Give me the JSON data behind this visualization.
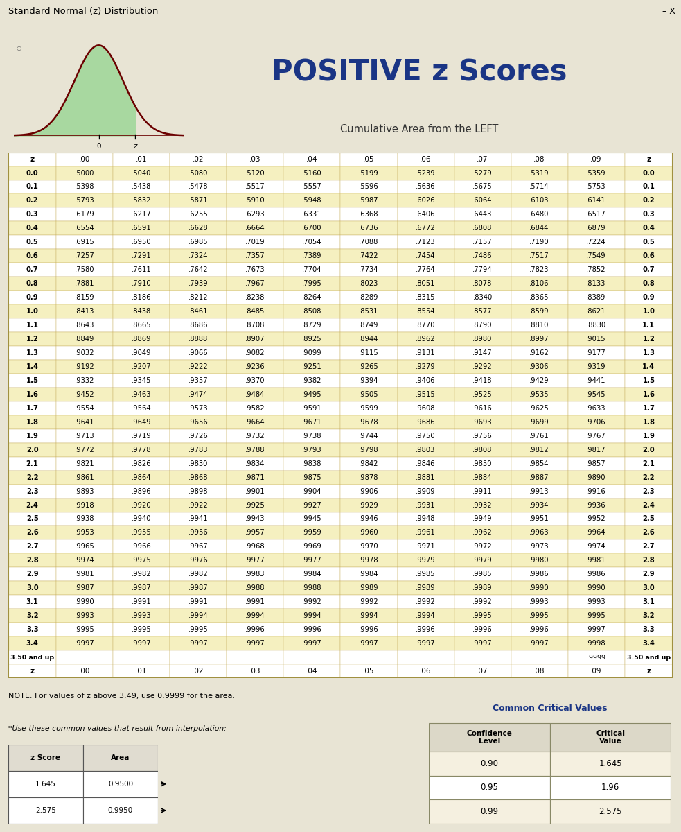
{
  "title": "Standard Normal (z) Distribution",
  "main_title": "POSITIVE z Scores",
  "subtitle": "Cumulative Area from the LEFT",
  "bg_color": "#e8e4d4",
  "main_bg": "#f0ece0",
  "row_even_color": "#f5f0c0",
  "row_odd_color": "#ffffff",
  "header_bg_color": "#ffffff",
  "border_color": "#c8b060",
  "col_headers": [
    "z",
    ".00",
    ".01",
    ".02",
    ".03",
    ".04",
    ".05",
    ".06",
    ".07",
    ".08",
    ".09",
    "z"
  ],
  "rows": [
    [
      "0.0",
      ".5000",
      ".5040",
      ".5080",
      ".5120",
      ".5160",
      ".5199",
      ".5239",
      ".5279",
      ".5319",
      ".5359",
      "0.0"
    ],
    [
      "0.1",
      ".5398",
      ".5438",
      ".5478",
      ".5517",
      ".5557",
      ".5596",
      ".5636",
      ".5675",
      ".5714",
      ".5753",
      "0.1"
    ],
    [
      "0.2",
      ".5793",
      ".5832",
      ".5871",
      ".5910",
      ".5948",
      ".5987",
      ".6026",
      ".6064",
      ".6103",
      ".6141",
      "0.2"
    ],
    [
      "0.3",
      ".6179",
      ".6217",
      ".6255",
      ".6293",
      ".6331",
      ".6368",
      ".6406",
      ".6443",
      ".6480",
      ".6517",
      "0.3"
    ],
    [
      "0.4",
      ".6554",
      ".6591",
      ".6628",
      ".6664",
      ".6700",
      ".6736",
      ".6772",
      ".6808",
      ".6844",
      ".6879",
      "0.4"
    ],
    [
      "0.5",
      ".6915",
      ".6950",
      ".6985",
      ".7019",
      ".7054",
      ".7088",
      ".7123",
      ".7157",
      ".7190",
      ".7224",
      "0.5"
    ],
    [
      "0.6",
      ".7257",
      ".7291",
      ".7324",
      ".7357",
      ".7389",
      ".7422",
      ".7454",
      ".7486",
      ".7517",
      ".7549",
      "0.6"
    ],
    [
      "0.7",
      ".7580",
      ".7611",
      ".7642",
      ".7673",
      ".7704",
      ".7734",
      ".7764",
      ".7794",
      ".7823",
      ".7852",
      "0.7"
    ],
    [
      "0.8",
      ".7881",
      ".7910",
      ".7939",
      ".7967",
      ".7995",
      ".8023",
      ".8051",
      ".8078",
      ".8106",
      ".8133",
      "0.8"
    ],
    [
      "0.9",
      ".8159",
      ".8186",
      ".8212",
      ".8238",
      ".8264",
      ".8289",
      ".8315",
      ".8340",
      ".8365",
      ".8389",
      "0.9"
    ],
    [
      "1.0",
      ".8413",
      ".8438",
      ".8461",
      ".8485",
      ".8508",
      ".8531",
      ".8554",
      ".8577",
      ".8599",
      ".8621",
      "1.0"
    ],
    [
      "1.1",
      ".8643",
      ".8665",
      ".8686",
      ".8708",
      ".8729",
      ".8749",
      ".8770",
      ".8790",
      ".8810",
      ".8830",
      "1.1"
    ],
    [
      "1.2",
      ".8849",
      ".8869",
      ".8888",
      ".8907",
      ".8925",
      ".8944",
      ".8962",
      ".8980",
      ".8997",
      ".9015",
      "1.2"
    ],
    [
      "1.3",
      ".9032",
      ".9049",
      ".9066",
      ".9082",
      ".9099",
      ".9115",
      ".9131",
      ".9147",
      ".9162",
      ".9177",
      "1.3"
    ],
    [
      "1.4",
      ".9192",
      ".9207",
      ".9222",
      ".9236",
      ".9251",
      ".9265",
      ".9279",
      ".9292",
      ".9306",
      ".9319",
      "1.4"
    ],
    [
      "1.5",
      ".9332",
      ".9345",
      ".9357",
      ".9370",
      ".9382",
      ".9394",
      ".9406",
      ".9418",
      ".9429",
      ".9441",
      "1.5"
    ],
    [
      "1.6",
      ".9452",
      ".9463",
      ".9474",
      ".9484",
      ".9495",
      ".9505",
      ".9515",
      ".9525",
      ".9535",
      ".9545",
      "1.6"
    ],
    [
      "1.7",
      ".9554",
      ".9564",
      ".9573",
      ".9582",
      ".9591",
      ".9599",
      ".9608",
      ".9616",
      ".9625",
      ".9633",
      "1.7"
    ],
    [
      "1.8",
      ".9641",
      ".9649",
      ".9656",
      ".9664",
      ".9671",
      ".9678",
      ".9686",
      ".9693",
      ".9699",
      ".9706",
      "1.8"
    ],
    [
      "1.9",
      ".9713",
      ".9719",
      ".9726",
      ".9732",
      ".9738",
      ".9744",
      ".9750",
      ".9756",
      ".9761",
      ".9767",
      "1.9"
    ],
    [
      "2.0",
      ".9772",
      ".9778",
      ".9783",
      ".9788",
      ".9793",
      ".9798",
      ".9803",
      ".9808",
      ".9812",
      ".9817",
      "2.0"
    ],
    [
      "2.1",
      ".9821",
      ".9826",
      ".9830",
      ".9834",
      ".9838",
      ".9842",
      ".9846",
      ".9850",
      ".9854",
      ".9857",
      "2.1"
    ],
    [
      "2.2",
      ".9861",
      ".9864",
      ".9868",
      ".9871",
      ".9875",
      ".9878",
      ".9881",
      ".9884",
      ".9887",
      ".9890",
      "2.2"
    ],
    [
      "2.3",
      ".9893",
      ".9896",
      ".9898",
      ".9901",
      ".9904",
      ".9906",
      ".9909",
      ".9911",
      ".9913",
      ".9916",
      "2.3"
    ],
    [
      "2.4",
      ".9918",
      ".9920",
      ".9922",
      ".9925",
      ".9927",
      ".9929",
      ".9931",
      ".9932",
      ".9934",
      ".9936",
      "2.4"
    ],
    [
      "2.5",
      ".9938",
      ".9940",
      ".9941",
      ".9943",
      ".9945",
      ".9946",
      ".9948",
      ".9949",
      ".9951",
      ".9952",
      "2.5"
    ],
    [
      "2.6",
      ".9953",
      ".9955",
      ".9956",
      ".9957",
      ".9959",
      ".9960",
      ".9961",
      ".9962",
      ".9963",
      ".9964",
      "2.6"
    ],
    [
      "2.7",
      ".9965",
      ".9966",
      ".9967",
      ".9968",
      ".9969",
      ".9970",
      ".9971",
      ".9972",
      ".9973",
      ".9974",
      "2.7"
    ],
    [
      "2.8",
      ".9974",
      ".9975",
      ".9976",
      ".9977",
      ".9977",
      ".9978",
      ".9979",
      ".9979",
      ".9980",
      ".9981",
      "2.8"
    ],
    [
      "2.9",
      ".9981",
      ".9982",
      ".9982",
      ".9983",
      ".9984",
      ".9984",
      ".9985",
      ".9985",
      ".9986",
      ".9986",
      "2.9"
    ],
    [
      "3.0",
      ".9987",
      ".9987",
      ".9987",
      ".9988",
      ".9988",
      ".9989",
      ".9989",
      ".9989",
      ".9990",
      ".9990",
      "3.0"
    ],
    [
      "3.1",
      ".9990",
      ".9991",
      ".9991",
      ".9991",
      ".9992",
      ".9992",
      ".9992",
      ".9992",
      ".9993",
      ".9993",
      "3.1"
    ],
    [
      "3.2",
      ".9993",
      ".9993",
      ".9994",
      ".9994",
      ".9994",
      ".9994",
      ".9994",
      ".9995",
      ".9995",
      ".9995",
      "3.2"
    ],
    [
      "3.3",
      ".9995",
      ".9995",
      ".9995",
      ".9996",
      ".9996",
      ".9996",
      ".9996",
      ".9996",
      ".9996",
      ".9997",
      "3.3"
    ],
    [
      "3.4",
      ".9997",
      ".9997",
      ".9997",
      ".9997",
      ".9997",
      ".9997",
      ".9997",
      ".9997",
      ".9997",
      ".9998",
      "3.4"
    ],
    [
      "3.50 and up",
      "",
      "",
      "",
      "",
      "",
      "",
      "",
      "",
      "",
      ".9999",
      "3.50 and up"
    ]
  ],
  "note_text": "NOTE: For values of z above 3.49, use 0.9999 for the area.",
  "interpolation_title": "*Use these common values that result from interpolation:",
  "interpolation_headers": [
    "z Score",
    "Area"
  ],
  "interpolation_rows": [
    [
      "1.645",
      "0.9500"
    ],
    [
      "2.575",
      "0.9950"
    ]
  ],
  "critical_title": "Common Critical Values",
  "critical_headers": [
    "Confidence\nLevel",
    "Critical\nValue"
  ],
  "critical_rows": [
    [
      "0.90",
      "1.645"
    ],
    [
      "0.95",
      "1.96"
    ],
    [
      "0.99",
      "2.575"
    ]
  ]
}
